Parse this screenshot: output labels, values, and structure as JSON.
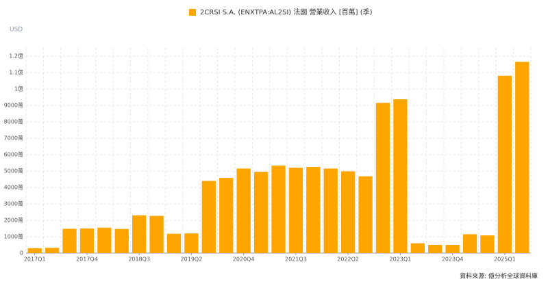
{
  "chart_data": {
    "type": "bar",
    "legend": "2CRSI S.A. (ENXTPA:AL2SI) 法國 營業收入 [百萬] (季)",
    "unit": "USD",
    "source": "資料來源: 億分析全球資料庫",
    "color": "#ffa500",
    "categories": [
      "2017Q1",
      null,
      null,
      "2017Q4",
      null,
      null,
      "2018Q3",
      null,
      null,
      "2019Q2",
      null,
      null,
      "2020Q4",
      null,
      null,
      "2021Q3",
      null,
      null,
      "2022Q2",
      null,
      null,
      "2023Q1",
      null,
      null,
      "2023Q4",
      null,
      null,
      "2025Q1",
      null
    ],
    "values": [
      300,
      320,
      1480,
      1500,
      1550,
      1470,
      2300,
      2270,
      1180,
      1200,
      4400,
      4580,
      5150,
      4950,
      5330,
      5200,
      5250,
      5150,
      4980,
      4680,
      9150,
      9370,
      600,
      500,
      500,
      1150,
      1080,
      10800,
      11650
    ],
    "ylim": [
      0,
      12500
    ],
    "yticks": [
      0,
      {
        "value": 1000,
        "label": "1000萬"
      },
      {
        "value": 2000,
        "label": "2000萬"
      },
      {
        "value": 3000,
        "label": "3000萬"
      },
      {
        "value": 4000,
        "label": "4000萬"
      },
      {
        "value": 5000,
        "label": "5000萬"
      },
      {
        "value": 6000,
        "label": "6000萬"
      },
      {
        "value": 7000,
        "label": "7000萬"
      },
      {
        "value": 8000,
        "label": "8000萬"
      },
      {
        "value": 9000,
        "label": "9000萬"
      },
      {
        "value": 10000,
        "label": "1億"
      },
      {
        "value": 11000,
        "label": "1.1億"
      },
      {
        "value": 12000,
        "label": "1.2億"
      }
    ],
    "grid": true
  }
}
